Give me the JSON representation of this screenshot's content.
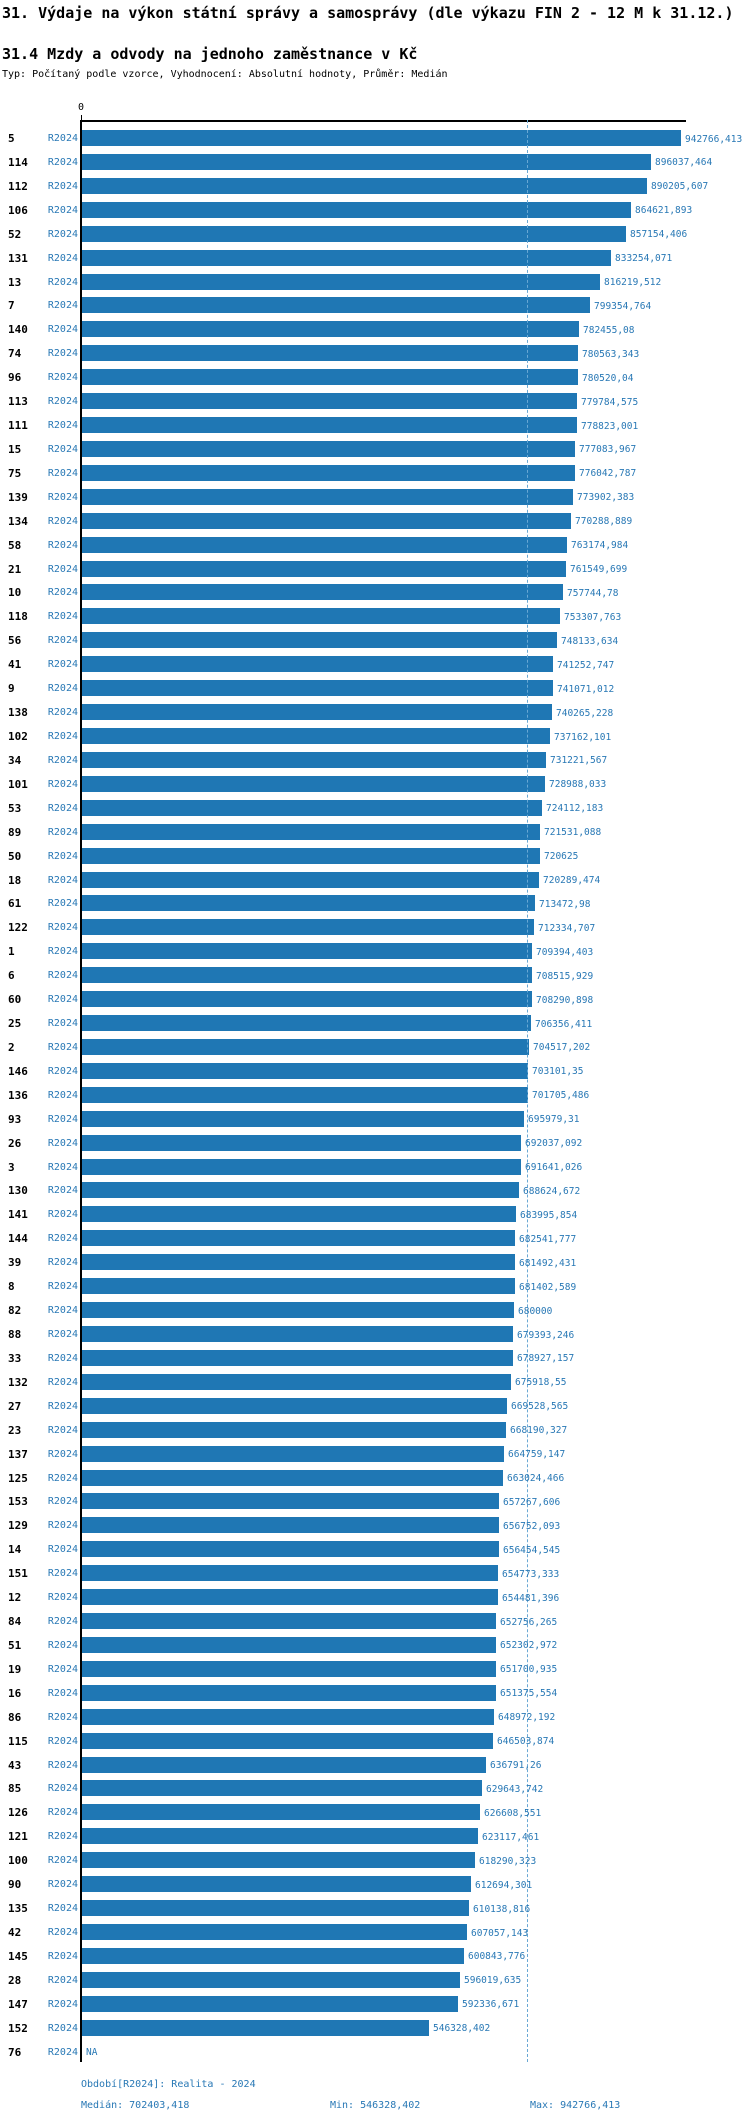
{
  "title": "31. Výdaje na výkon státní správy a samosprávy (dle výkazu FIN 2 - 12 M k 31.12.)",
  "subtitle": "31.4 Mzdy a odvody na jednoho zaměstnance v Kč",
  "type_line": "Typ: Počítaný podle vzorce, Vyhodnocení: Absolutní hodnoty, Průměr: Medián",
  "period_label": "R2024",
  "colors": {
    "bar": "#1f77b4",
    "blue_text": "#2878b5",
    "median_line": "#69a8d4",
    "axis": "#000000"
  },
  "footer": {
    "period_line": "Období[R2024]: Realita - 2024",
    "median_line": "Medián: 702403,418",
    "min_line": "Min: 546328,402",
    "max_line": "Max: 942766,413"
  },
  "chart_data": {
    "type": "bar",
    "orientation": "horizontal",
    "title": "31.4 Mzdy a odvody na jednoho zaměstnance v Kč",
    "x_axis_zero_label": "0",
    "xlim": [
      0,
      950000
    ],
    "series_name": "R2024",
    "median": 702403.418,
    "min": 546328.402,
    "max": 942766.413,
    "na_label": "NA",
    "categories": [
      "5",
      "114",
      "112",
      "106",
      "52",
      "131",
      "13",
      "7",
      "140",
      "74",
      "96",
      "113",
      "111",
      "15",
      "75",
      "139",
      "134",
      "58",
      "21",
      "10",
      "118",
      "56",
      "41",
      "9",
      "138",
      "102",
      "34",
      "101",
      "53",
      "89",
      "50",
      "18",
      "61",
      "122",
      "1",
      "6",
      "60",
      "25",
      "2",
      "146",
      "136",
      "93",
      "26",
      "3",
      "130",
      "141",
      "144",
      "39",
      "8",
      "82",
      "88",
      "33",
      "132",
      "27",
      "23",
      "137",
      "125",
      "153",
      "129",
      "14",
      "151",
      "12",
      "84",
      "51",
      "19",
      "16",
      "86",
      "115",
      "43",
      "85",
      "126",
      "121",
      "100",
      "90",
      "135",
      "42",
      "145",
      "28",
      "147",
      "152",
      "76"
    ],
    "values": [
      942766.413,
      896037.464,
      890205.607,
      864621.893,
      857154.406,
      833254.071,
      816219.512,
      799354.764,
      782455.08,
      780563.343,
      780520.04,
      779784.575,
      778823.001,
      777083.967,
      776042.787,
      773902.383,
      770288.889,
      763174.984,
      761549.699,
      757744.78,
      753307.763,
      748133.634,
      741252.747,
      741071.012,
      740265.228,
      737162.101,
      731221.567,
      728988.033,
      724112.183,
      721531.088,
      720625,
      720289.474,
      713472.98,
      712334.707,
      709394.403,
      708515.929,
      708290.898,
      706356.411,
      704517.202,
      703101.35,
      701705.486,
      695979.31,
      692037.092,
      691641.026,
      688624.672,
      683995.854,
      682541.777,
      681492.431,
      681402.589,
      680000,
      679393.246,
      678927.157,
      675918.55,
      669528.565,
      668190.327,
      664759.147,
      663024.466,
      657267.606,
      656752.093,
      656454.545,
      654773.333,
      654481.396,
      652756.265,
      652302.972,
      651700.935,
      651375.554,
      648972.192,
      646503.874,
      636791.26,
      629643.742,
      626608.551,
      623117.461,
      618290.323,
      612694.301,
      610138.816,
      607057.143,
      600843.776,
      596019.635,
      592336.671,
      546328.402,
      null
    ],
    "value_labels": [
      "942766,413",
      "896037,464",
      "890205,607",
      "864621,893",
      "857154,406",
      "833254,071",
      "816219,512",
      "799354,764",
      "782455,08",
      "780563,343",
      "780520,04",
      "779784,575",
      "778823,001",
      "777083,967",
      "776042,787",
      "773902,383",
      "770288,889",
      "763174,984",
      "761549,699",
      "757744,78",
      "753307,763",
      "748133,634",
      "741252,747",
      "741071,012",
      "740265,228",
      "737162,101",
      "731221,567",
      "728988,033",
      "724112,183",
      "721531,088",
      "720625",
      "720289,474",
      "713472,98",
      "712334,707",
      "709394,403",
      "708515,929",
      "708290,898",
      "706356,411",
      "704517,202",
      "703101,35",
      "701705,486",
      "695979,31",
      "692037,092",
      "691641,026",
      "688624,672",
      "683995,854",
      "682541,777",
      "681492,431",
      "681402,589",
      "680000",
      "679393,246",
      "678927,157",
      "675918,55",
      "669528,565",
      "668190,327",
      "664759,147",
      "663024,466",
      "657267,606",
      "656752,093",
      "656454,545",
      "654773,333",
      "654481,396",
      "652756,265",
      "652302,972",
      "651700,935",
      "651375,554",
      "648972,192",
      "646503,874",
      "636791,26",
      "629643,742",
      "626608,551",
      "623117,461",
      "618290,323",
      "612694,301",
      "610138,816",
      "607057,143",
      "600843,776",
      "596019,635",
      "592336,671",
      "546328,402",
      "NA"
    ]
  }
}
